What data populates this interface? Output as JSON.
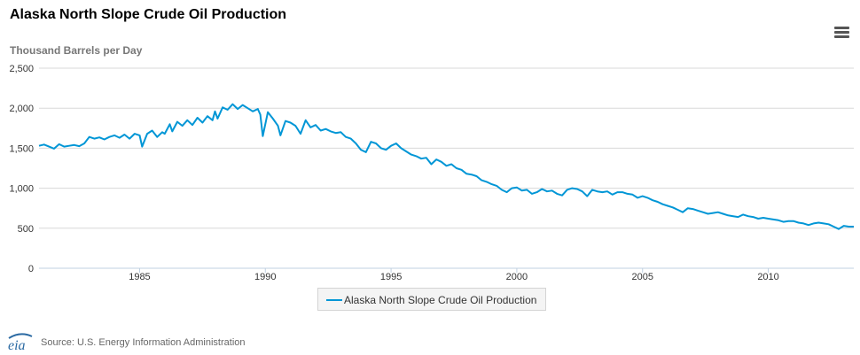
{
  "chart_title": "Alaska North Slope Crude Oil Production",
  "menu": {
    "icon": "hamburger-menu-icon"
  },
  "source_text": "Source: U.S. Energy Information Administration",
  "logo_text": "eia",
  "colors": {
    "series": "#0096d6",
    "grid": "#d8d8d8",
    "axis": "#c0d0e0",
    "text": "#333333"
  },
  "chart_data": {
    "type": "line",
    "title": "Alaska North Slope Crude Oil Production",
    "ylabel": "Thousand Barrels per Day",
    "xlabel": "",
    "ylim": [
      0,
      2500
    ],
    "xlim": [
      1981,
      2013.4
    ],
    "yticks": [
      0,
      500,
      1000,
      1500,
      2000,
      2500
    ],
    "ytick_labels": [
      "0",
      "500",
      "1,000",
      "1,500",
      "2,000",
      "2,500"
    ],
    "xticks": [
      1985,
      1990,
      1995,
      2000,
      2005,
      2010
    ],
    "xtick_labels": [
      "1985",
      "1990",
      "1995",
      "2000",
      "2005",
      "2010"
    ],
    "grid": true,
    "legend_position": "bottom-center",
    "series": [
      {
        "name": "Alaska North Slope Crude Oil Production",
        "color": "#0096d6",
        "points": [
          [
            1981.0,
            1530
          ],
          [
            1981.2,
            1545
          ],
          [
            1981.4,
            1520
          ],
          [
            1981.6,
            1495
          ],
          [
            1981.8,
            1550
          ],
          [
            1982.0,
            1520
          ],
          [
            1982.2,
            1530
          ],
          [
            1982.4,
            1540
          ],
          [
            1982.6,
            1525
          ],
          [
            1982.8,
            1560
          ],
          [
            1983.0,
            1640
          ],
          [
            1983.2,
            1620
          ],
          [
            1983.4,
            1635
          ],
          [
            1983.6,
            1610
          ],
          [
            1983.8,
            1640
          ],
          [
            1984.0,
            1660
          ],
          [
            1984.2,
            1630
          ],
          [
            1984.4,
            1670
          ],
          [
            1984.6,
            1620
          ],
          [
            1984.8,
            1680
          ],
          [
            1985.0,
            1660
          ],
          [
            1985.1,
            1520
          ],
          [
            1985.3,
            1680
          ],
          [
            1985.5,
            1720
          ],
          [
            1985.7,
            1640
          ],
          [
            1985.9,
            1700
          ],
          [
            1986.0,
            1680
          ],
          [
            1986.2,
            1800
          ],
          [
            1986.3,
            1710
          ],
          [
            1986.5,
            1830
          ],
          [
            1986.7,
            1780
          ],
          [
            1986.9,
            1850
          ],
          [
            1987.1,
            1790
          ],
          [
            1987.3,
            1880
          ],
          [
            1987.5,
            1820
          ],
          [
            1987.7,
            1900
          ],
          [
            1987.9,
            1850
          ],
          [
            1988.0,
            1960
          ],
          [
            1988.1,
            1870
          ],
          [
            1988.3,
            2010
          ],
          [
            1988.5,
            1980
          ],
          [
            1988.7,
            2050
          ],
          [
            1988.9,
            1990
          ],
          [
            1989.1,
            2040
          ],
          [
            1989.3,
            2000
          ],
          [
            1989.5,
            1960
          ],
          [
            1989.7,
            1990
          ],
          [
            1989.8,
            1920
          ],
          [
            1989.9,
            1650
          ],
          [
            1990.1,
            1950
          ],
          [
            1990.3,
            1870
          ],
          [
            1990.5,
            1780
          ],
          [
            1990.6,
            1660
          ],
          [
            1990.8,
            1840
          ],
          [
            1991.0,
            1820
          ],
          [
            1991.2,
            1780
          ],
          [
            1991.4,
            1680
          ],
          [
            1991.6,
            1850
          ],
          [
            1991.8,
            1760
          ],
          [
            1992.0,
            1790
          ],
          [
            1992.2,
            1720
          ],
          [
            1992.4,
            1740
          ],
          [
            1992.6,
            1710
          ],
          [
            1992.8,
            1690
          ],
          [
            1993.0,
            1700
          ],
          [
            1993.2,
            1640
          ],
          [
            1993.4,
            1620
          ],
          [
            1993.6,
            1560
          ],
          [
            1993.8,
            1480
          ],
          [
            1994.0,
            1450
          ],
          [
            1994.2,
            1580
          ],
          [
            1994.4,
            1560
          ],
          [
            1994.6,
            1500
          ],
          [
            1994.8,
            1480
          ],
          [
            1995.0,
            1530
          ],
          [
            1995.2,
            1560
          ],
          [
            1995.4,
            1500
          ],
          [
            1995.6,
            1460
          ],
          [
            1995.8,
            1420
          ],
          [
            1996.0,
            1400
          ],
          [
            1996.2,
            1370
          ],
          [
            1996.4,
            1380
          ],
          [
            1996.6,
            1300
          ],
          [
            1996.8,
            1360
          ],
          [
            1997.0,
            1330
          ],
          [
            1997.2,
            1280
          ],
          [
            1997.4,
            1300
          ],
          [
            1997.6,
            1250
          ],
          [
            1997.8,
            1230
          ],
          [
            1998.0,
            1180
          ],
          [
            1998.2,
            1170
          ],
          [
            1998.4,
            1150
          ],
          [
            1998.6,
            1100
          ],
          [
            1998.8,
            1080
          ],
          [
            1999.0,
            1050
          ],
          [
            1999.2,
            1030
          ],
          [
            1999.4,
            980
          ],
          [
            1999.6,
            950
          ],
          [
            1999.8,
            1000
          ],
          [
            2000.0,
            1010
          ],
          [
            2000.2,
            970
          ],
          [
            2000.4,
            980
          ],
          [
            2000.6,
            930
          ],
          [
            2000.8,
            950
          ],
          [
            2001.0,
            990
          ],
          [
            2001.2,
            960
          ],
          [
            2001.4,
            970
          ],
          [
            2001.6,
            930
          ],
          [
            2001.8,
            910
          ],
          [
            2002.0,
            980
          ],
          [
            2002.2,
            1000
          ],
          [
            2002.4,
            990
          ],
          [
            2002.6,
            960
          ],
          [
            2002.8,
            900
          ],
          [
            2003.0,
            980
          ],
          [
            2003.2,
            960
          ],
          [
            2003.4,
            950
          ],
          [
            2003.6,
            960
          ],
          [
            2003.8,
            920
          ],
          [
            2004.0,
            950
          ],
          [
            2004.2,
            950
          ],
          [
            2004.4,
            930
          ],
          [
            2004.6,
            920
          ],
          [
            2004.8,
            880
          ],
          [
            2005.0,
            900
          ],
          [
            2005.2,
            880
          ],
          [
            2005.4,
            850
          ],
          [
            2005.6,
            830
          ],
          [
            2005.8,
            800
          ],
          [
            2006.0,
            780
          ],
          [
            2006.2,
            760
          ],
          [
            2006.4,
            730
          ],
          [
            2006.6,
            700
          ],
          [
            2006.8,
            750
          ],
          [
            2007.0,
            740
          ],
          [
            2007.2,
            720
          ],
          [
            2007.4,
            700
          ],
          [
            2007.6,
            680
          ],
          [
            2007.8,
            690
          ],
          [
            2008.0,
            700
          ],
          [
            2008.2,
            680
          ],
          [
            2008.4,
            660
          ],
          [
            2008.6,
            650
          ],
          [
            2008.8,
            640
          ],
          [
            2009.0,
            670
          ],
          [
            2009.2,
            650
          ],
          [
            2009.4,
            640
          ],
          [
            2009.6,
            620
          ],
          [
            2009.8,
            630
          ],
          [
            2010.0,
            620
          ],
          [
            2010.2,
            610
          ],
          [
            2010.4,
            600
          ],
          [
            2010.6,
            580
          ],
          [
            2010.8,
            590
          ],
          [
            2011.0,
            590
          ],
          [
            2011.2,
            570
          ],
          [
            2011.4,
            560
          ],
          [
            2011.6,
            540
          ],
          [
            2011.8,
            560
          ],
          [
            2012.0,
            570
          ],
          [
            2012.2,
            560
          ],
          [
            2012.4,
            550
          ],
          [
            2012.6,
            520
          ],
          [
            2012.8,
            490
          ],
          [
            2013.0,
            530
          ],
          [
            2013.2,
            520
          ],
          [
            2013.4,
            520
          ]
        ]
      }
    ]
  }
}
